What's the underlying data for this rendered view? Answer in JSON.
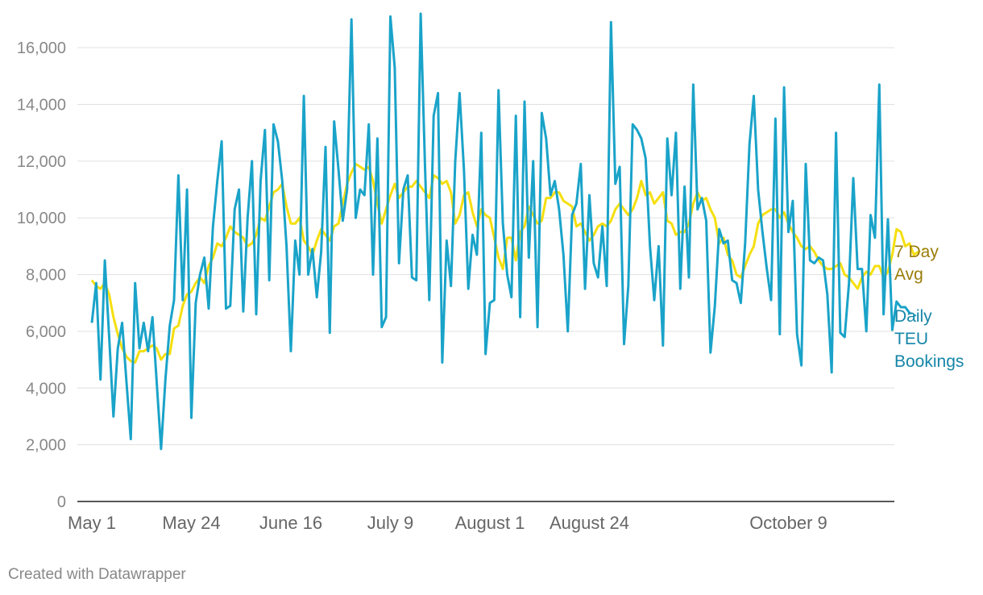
{
  "footer": "Created with Datawrapper",
  "colors": {
    "avg": "#f5df0f",
    "daily": "#1aa3c9",
    "avg_label": "#9a7d0a",
    "daily_label": "#1586a8",
    "grid": "#e0e0e0",
    "axis": "#222222"
  },
  "chart_data": {
    "type": "line",
    "ylim": [
      0,
      17000
    ],
    "yticks": [
      {
        "value": 0,
        "label": "0"
      },
      {
        "value": 2000,
        "label": "2,000"
      },
      {
        "value": 4000,
        "label": "4,000"
      },
      {
        "value": 6000,
        "label": "6,000"
      },
      {
        "value": 8000,
        "label": "8,000"
      },
      {
        "value": 10000,
        "label": "10,000"
      },
      {
        "value": 12000,
        "label": "12,000"
      },
      {
        "value": 14000,
        "label": "14,000"
      },
      {
        "value": 16000,
        "label": "16,000"
      }
    ],
    "x_start": "May 1",
    "x_end": "November 1",
    "xticks": [
      {
        "day": 0,
        "label": "May 1"
      },
      {
        "day": 23,
        "label": "May 24"
      },
      {
        "day": 46,
        "label": "June 16"
      },
      {
        "day": 69,
        "label": "July 9"
      },
      {
        "day": 92,
        "label": "August 1"
      },
      {
        "day": 115,
        "label": "August 24"
      },
      {
        "day": 161,
        "label": "October 9"
      }
    ],
    "series": [
      {
        "name": "Daily TEU Bookings",
        "label_lines": [
          "Daily",
          "TEU",
          "Bookings"
        ],
        "values": [
          6300,
          7700,
          4300,
          8500,
          5800,
          3000,
          5400,
          6300,
          4200,
          2200,
          7700,
          5400,
          6300,
          5300,
          6500,
          4200,
          1850,
          4300,
          6200,
          7100,
          11500,
          7100,
          11000,
          2950,
          7000,
          8000,
          8600,
          6800,
          9700,
          11300,
          12700,
          6800,
          6900,
          10300,
          11000,
          6700,
          10000,
          12000,
          6600,
          11300,
          13100,
          7800,
          13300,
          12700,
          11300,
          9000,
          5300,
          9200,
          8000,
          14300,
          8000,
          8900,
          7200,
          8800,
          12500,
          5950,
          13400,
          11700,
          9900,
          11000,
          17000,
          10000,
          11000,
          10800,
          13300,
          8000,
          12800,
          6150,
          6500,
          17100,
          15300,
          8400,
          11000,
          11500,
          7900,
          7800,
          17200,
          11800,
          7100,
          13600,
          14400,
          4900,
          9200,
          7600,
          12000,
          14400,
          11700,
          7500,
          9400,
          8700,
          13000,
          5200,
          7000,
          7100,
          14500,
          9800,
          8000,
          7200,
          13600,
          6500,
          14100,
          8600,
          12000,
          6150,
          13700,
          12800,
          10800,
          11300,
          10300,
          8700,
          6000,
          10100,
          10500,
          11900,
          7500,
          10800,
          8400,
          7900,
          9700,
          7600,
          16900,
          11200,
          11800,
          5550,
          7600,
          13300,
          13100,
          12800,
          12100,
          9000,
          7100,
          9000,
          5500,
          12800,
          10800,
          13000,
          7500,
          11100,
          7900,
          14700,
          10300,
          10700,
          9900,
          5250,
          6900,
          9600,
          9100,
          9200,
          7800,
          7700,
          7000,
          9100,
          12600,
          14300,
          11000,
          9500,
          8200,
          7100,
          13500,
          5900,
          14600,
          9500,
          10600,
          5900,
          4800,
          11900,
          8500,
          8400,
          8600,
          8500,
          7300,
          4550,
          13000,
          5950,
          5800,
          7700,
          11400,
          8200,
          8200,
          6000,
          10100,
          9300,
          14700,
          6600,
          9950,
          6050,
          7050,
          6850,
          6850,
          6650
        ]
      },
      {
        "name": "7 Day Avg",
        "label_lines": [
          "7 Day",
          "Avg"
        ],
        "values": [
          7800,
          7600,
          7500,
          7700,
          7300,
          6500,
          5900,
          5400,
          5100,
          4950,
          4900,
          5300,
          5300,
          5400,
          5500,
          5400,
          5000,
          5200,
          5200,
          6100,
          6200,
          6900,
          7300,
          7400,
          7700,
          7900,
          7700,
          8300,
          8600,
          9100,
          9000,
          9300,
          9700,
          9500,
          9400,
          9300,
          9000,
          9100,
          9400,
          10000,
          9900,
          10400,
          10900,
          11000,
          11200,
          10400,
          9800,
          9800,
          10000,
          9200,
          9000,
          8700,
          9200,
          9600,
          9400,
          9200,
          9700,
          9800,
          10500,
          11200,
          11600,
          11900,
          11800,
          11700,
          11800,
          11300,
          10500,
          9800,
          10300,
          10800,
          11200,
          10700,
          10900,
          11100,
          11100,
          11300,
          11100,
          10900,
          10700,
          11500,
          11400,
          11200,
          11300,
          10900,
          9800,
          10100,
          10800,
          10900,
          10200,
          9700,
          10300,
          10100,
          10000,
          9300,
          8600,
          8200,
          9300,
          9300,
          8500,
          9500,
          9700,
          10400,
          10100,
          9800,
          9900,
          10700,
          10700,
          10900,
          10900,
          10600,
          10500,
          10400,
          9700,
          9800,
          9500,
          9200,
          9400,
          9700,
          9800,
          9700,
          9900,
          10300,
          10500,
          10300,
          10100,
          10300,
          10700,
          11300,
          10800,
          10900,
          10500,
          10700,
          10900,
          9900,
          9800,
          9400,
          9500,
          9500,
          9800,
          10500,
          10900,
          10600,
          10700,
          10300,
          10000,
          9100,
          9300,
          8700,
          8500,
          8000,
          7900,
          8300,
          8700,
          9000,
          9800,
          10100,
          10200,
          10300,
          10300,
          10000,
          10200,
          9800,
          9500,
          9300,
          9000,
          8900,
          9000,
          8800,
          8500,
          8300,
          8200,
          8200,
          8300,
          8400,
          8000,
          7900,
          7700,
          7500,
          7900,
          8100,
          8000,
          8300,
          8300,
          7900,
          8100,
          8700,
          9600,
          9500,
          9000,
          9100,
          8700,
          8800
        ]
      }
    ]
  }
}
